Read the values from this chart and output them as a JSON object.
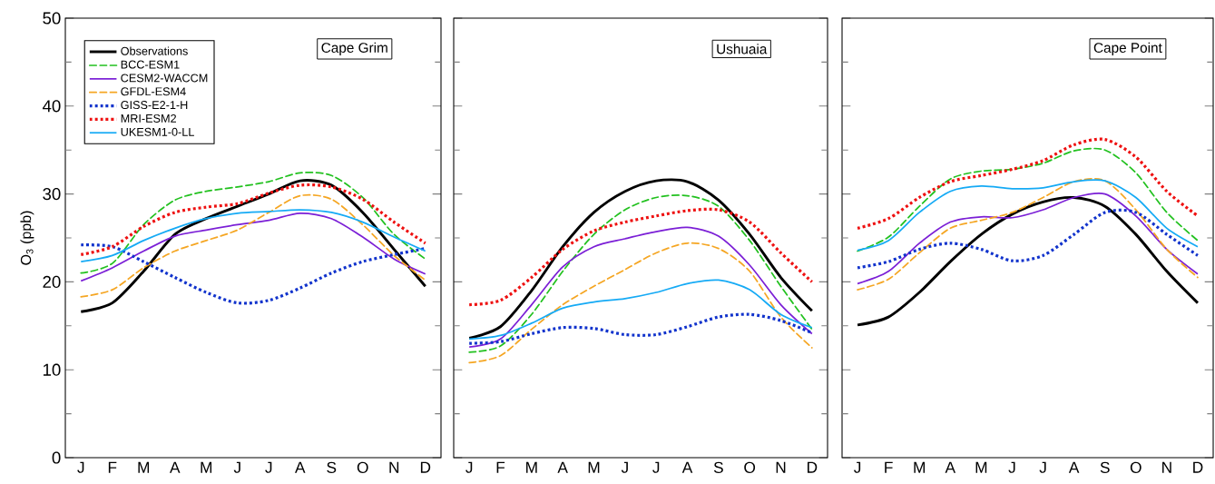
{
  "chart_data": [
    {
      "type": "line",
      "title": "Cape Grim",
      "ylabel": "O$_{3}$ (ppb)",
      "legend": "top left",
      "categories": [
        "J",
        "F",
        "M",
        "A",
        "M",
        "J",
        "J",
        "A",
        "S",
        "O",
        "N",
        "D"
      ],
      "ylim": [
        0,
        50
      ],
      "yticks": [
        0,
        10,
        20,
        30,
        40,
        50,
        {
          "value": 5,
          "label": null
        },
        {
          "value": 15,
          "label": null
        },
        {
          "value": 25,
          "label": null
        },
        {
          "value": 35,
          "label": null
        },
        {
          "value": 45,
          "label": null
        }
      ],
      "series": [
        {
          "name": "Observations",
          "color": "#000000",
          "line_style": "solid",
          "values": [
            16.6,
            17.6,
            21.2,
            25.4,
            27.2,
            28.6,
            30.0,
            31.5,
            31.0,
            27.9,
            23.7,
            19.5
          ]
        },
        {
          "name": "BCC-ESM1",
          "color": "#22c11f",
          "line_style": "dashed",
          "values": [
            21.0,
            22.1,
            26.5,
            29.3,
            30.3,
            30.8,
            31.4,
            32.4,
            32.1,
            29.6,
            25.4,
            22.6
          ]
        },
        {
          "name": "CESM2-WACCM",
          "color": "#7b1fd6",
          "line_style": "solid",
          "values": [
            20.1,
            21.6,
            23.5,
            25.2,
            25.9,
            26.5,
            27.0,
            27.8,
            27.2,
            25.1,
            22.6,
            20.9
          ]
        },
        {
          "name": "GFDL-ESM4",
          "color": "#f5a623",
          "line_style": "dashed",
          "values": [
            18.3,
            19.1,
            21.6,
            23.5,
            24.7,
            25.9,
            27.9,
            29.8,
            29.4,
            26.5,
            23.0,
            20.2
          ]
        },
        {
          "name": "GISS-E2-1-H",
          "color": "#1133cc",
          "line_style": "dotted",
          "values": [
            24.2,
            24.0,
            22.3,
            20.5,
            18.8,
            17.6,
            17.9,
            19.3,
            21.0,
            22.3,
            23.1,
            23.8
          ]
        },
        {
          "name": "MRI-ESM2",
          "color": "#ee1111",
          "line_style": "dotted",
          "values": [
            23.1,
            24.0,
            26.3,
            27.9,
            28.5,
            28.9,
            30.1,
            31.0,
            30.8,
            29.4,
            26.8,
            24.4
          ]
        },
        {
          "name": "UKESM1-0-LL",
          "color": "#15aaf5",
          "line_style": "solid",
          "values": [
            22.3,
            23.0,
            24.7,
            26.1,
            27.2,
            27.8,
            28.0,
            28.2,
            27.9,
            26.8,
            25.1,
            23.5
          ]
        }
      ]
    },
    {
      "type": "line",
      "title": "Ushuaia",
      "tick_labels": "x",
      "categories": [
        "J",
        "F",
        "M",
        "A",
        "M",
        "J",
        "J",
        "A",
        "S",
        "O",
        "N",
        "D"
      ],
      "ylim": [
        0,
        50
      ],
      "yticks": [
        0,
        10,
        20,
        30,
        40,
        50,
        {
          "value": 5,
          "label": null
        },
        {
          "value": 15,
          "label": null
        },
        {
          "value": 25,
          "label": null
        },
        {
          "value": 35,
          "label": null
        },
        {
          "value": 45,
          "label": null
        }
      ],
      "series": [
        {
          "color": "#000000",
          "line_style": "solid",
          "values": [
            13.6,
            14.9,
            19.0,
            24.0,
            27.9,
            30.3,
            31.5,
            31.4,
            29.3,
            25.4,
            20.5,
            16.7
          ]
        },
        {
          "color": "#22c11f",
          "line_style": "dashed",
          "values": [
            12.0,
            12.7,
            16.3,
            21.2,
            25.4,
            28.2,
            29.6,
            29.8,
            28.6,
            24.7,
            19.5,
            14.6
          ]
        },
        {
          "color": "#7b1fd6",
          "line_style": "solid",
          "values": [
            12.6,
            13.5,
            17.4,
            21.7,
            24.0,
            24.9,
            25.7,
            26.2,
            25.2,
            21.9,
            17.4,
            14.1
          ]
        },
        {
          "color": "#f5a623",
          "line_style": "dashed",
          "values": [
            10.8,
            11.6,
            14.6,
            17.4,
            19.5,
            21.4,
            23.3,
            24.4,
            23.8,
            21.2,
            16.0,
            12.5
          ]
        },
        {
          "color": "#1133cc",
          "line_style": "dotted",
          "values": [
            13.0,
            13.2,
            14.1,
            14.8,
            14.7,
            14.0,
            14.0,
            14.9,
            16.0,
            16.3,
            15.6,
            14.2
          ]
        },
        {
          "color": "#ee1111",
          "line_style": "dotted",
          "values": [
            17.4,
            17.9,
            20.5,
            23.7,
            25.8,
            26.8,
            27.5,
            28.1,
            28.2,
            26.8,
            23.3,
            20.0
          ]
        },
        {
          "color": "#15aaf5",
          "line_style": "solid",
          "values": [
            13.5,
            13.9,
            15.3,
            17.0,
            17.7,
            18.1,
            18.8,
            19.8,
            20.2,
            19.1,
            16.3,
            14.8
          ]
        }
      ]
    },
    {
      "type": "line",
      "title": "Cape Point",
      "tick_labels": "x",
      "categories": [
        "J",
        "F",
        "M",
        "A",
        "M",
        "J",
        "J",
        "A",
        "S",
        "O",
        "N",
        "D"
      ],
      "ylim": [
        0,
        50
      ],
      "yticks": [
        0,
        10,
        20,
        30,
        40,
        50,
        {
          "value": 5,
          "label": null
        },
        {
          "value": 15,
          "label": null
        },
        {
          "value": 25,
          "label": null
        },
        {
          "value": 35,
          "label": null
        },
        {
          "value": 45,
          "label": null
        }
      ],
      "series": [
        {
          "color": "#000000",
          "line_style": "solid",
          "values": [
            15.1,
            16.0,
            18.8,
            22.3,
            25.4,
            27.7,
            29.1,
            29.6,
            28.6,
            25.4,
            21.2,
            17.6
          ]
        },
        {
          "color": "#22c11f",
          "line_style": "dashed",
          "values": [
            23.5,
            25.1,
            28.6,
            31.7,
            32.6,
            32.8,
            33.5,
            34.9,
            35.0,
            32.4,
            27.9,
            24.7
          ]
        },
        {
          "color": "#7b1fd6",
          "line_style": "solid",
          "values": [
            19.8,
            21.2,
            24.4,
            26.8,
            27.4,
            27.3,
            28.2,
            29.6,
            30.0,
            27.5,
            23.7,
            20.9
          ]
        },
        {
          "color": "#f5a623",
          "line_style": "dashed",
          "values": [
            19.1,
            20.3,
            23.3,
            26.1,
            27.0,
            27.9,
            29.6,
            31.4,
            31.5,
            28.2,
            23.7,
            20.5
          ]
        },
        {
          "color": "#1133cc",
          "line_style": "dotted",
          "values": [
            21.6,
            22.3,
            23.7,
            24.4,
            23.7,
            22.4,
            23.0,
            25.4,
            27.9,
            27.9,
            25.4,
            23.0
          ]
        },
        {
          "color": "#ee1111",
          "line_style": "dotted",
          "values": [
            26.1,
            27.2,
            29.6,
            31.4,
            32.1,
            32.8,
            33.8,
            35.6,
            36.2,
            34.2,
            30.3,
            27.5
          ]
        },
        {
          "color": "#15aaf5",
          "line_style": "solid",
          "values": [
            23.6,
            24.7,
            27.9,
            30.3,
            30.9,
            30.6,
            30.7,
            31.4,
            31.5,
            29.6,
            26.1,
            24.0
          ]
        }
      ]
    }
  ]
}
